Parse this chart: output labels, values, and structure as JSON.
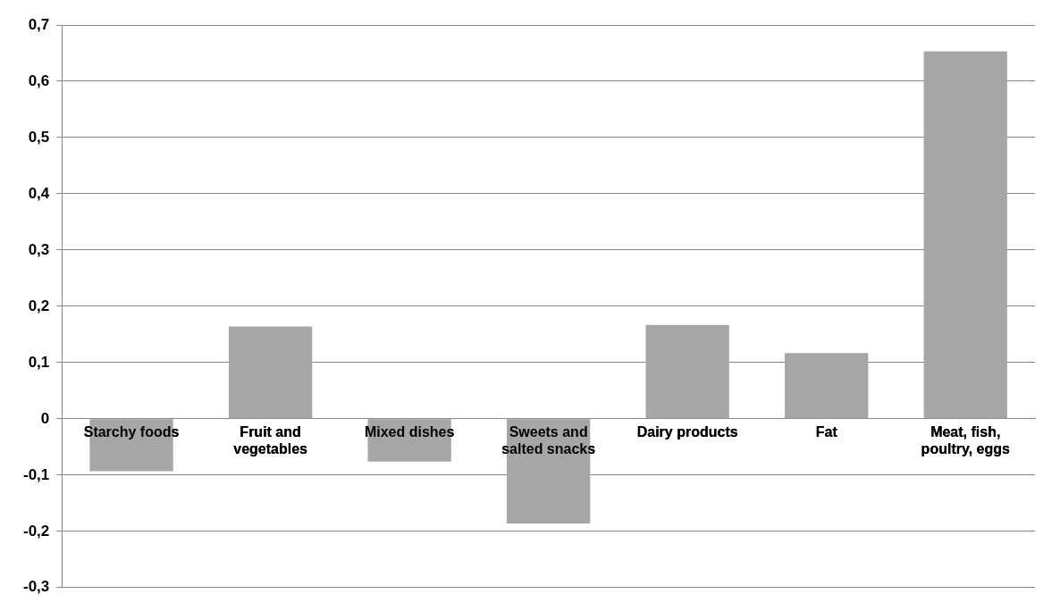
{
  "chart_data": {
    "type": "bar",
    "categories": [
      "Starchy foods",
      "Fruit and vegetables",
      "Mixed dishes",
      "Sweets and salted snacks",
      "Dairy products",
      "Fat",
      "Meat, fish, poultry, eggs"
    ],
    "values": [
      -0.093,
      0.164,
      -0.076,
      -0.186,
      0.167,
      0.117,
      0.653
    ],
    "color": "#a6a6a6",
    "ylim": [
      -0.3,
      0.7
    ],
    "yticks": [
      {
        "value": -0.3,
        "label": "-0,3"
      },
      {
        "value": -0.2,
        "label": "-0,2"
      },
      {
        "value": -0.1,
        "label": "-0,1"
      },
      {
        "value": 0,
        "label": "0"
      },
      {
        "value": 0.1,
        "label": "0,1"
      },
      {
        "value": 0.2,
        "label": "0,2"
      },
      {
        "value": 0.3,
        "label": "0,3"
      },
      {
        "value": 0.4,
        "label": "0,4"
      },
      {
        "value": 0.5,
        "label": "0,5"
      },
      {
        "value": 0.6,
        "label": "0,6"
      },
      {
        "value": 0.7,
        "label": "0,7"
      }
    ],
    "grid": "y",
    "legend": false
  }
}
